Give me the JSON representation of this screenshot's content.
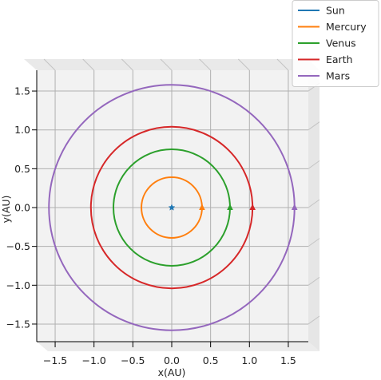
{
  "chart_data": {
    "type": "line",
    "xlabel": "x(AU)",
    "ylabel": "y(AU)",
    "xlim": [
      -1.75,
      1.75
    ],
    "ylim": [
      -1.75,
      1.75
    ],
    "grid": true,
    "legend_position": "top-right",
    "x_ticks": [
      {
        "value": -1.5,
        "label": "−1.5"
      },
      {
        "value": -1.0,
        "label": "−1.0"
      },
      {
        "value": -0.5,
        "label": "−0.5"
      },
      {
        "value": 0.0,
        "label": "0.0"
      },
      {
        "value": 0.5,
        "label": "0.5"
      },
      {
        "value": 1.0,
        "label": "1.0"
      },
      {
        "value": 1.5,
        "label": "1.5"
      }
    ],
    "y_ticks": [
      {
        "value": 1.5,
        "label": "1.5"
      },
      {
        "value": 1.0,
        "label": "1.0"
      },
      {
        "value": 0.5,
        "label": "0.5"
      },
      {
        "value": 0.0,
        "label": "0.0"
      },
      {
        "value": -0.5,
        "label": "−0.5"
      },
      {
        "value": -1.0,
        "label": "−1.0"
      },
      {
        "value": -1.5,
        "label": "−1.5"
      }
    ],
    "series": [
      {
        "name": "Sun",
        "color": "#1f77b4",
        "radius": 0.0,
        "marker": "star"
      },
      {
        "name": "Mercury",
        "color": "#ff7f0e",
        "radius": 0.39,
        "marker": "triangle"
      },
      {
        "name": "Venus",
        "color": "#2ca02c",
        "radius": 0.75,
        "marker": "triangle"
      },
      {
        "name": "Earth",
        "color": "#d62728",
        "radius": 1.04,
        "marker": "triangle"
      },
      {
        "name": "Mars",
        "color": "#9467bd",
        "radius": 1.58,
        "marker": "triangle"
      }
    ]
  }
}
